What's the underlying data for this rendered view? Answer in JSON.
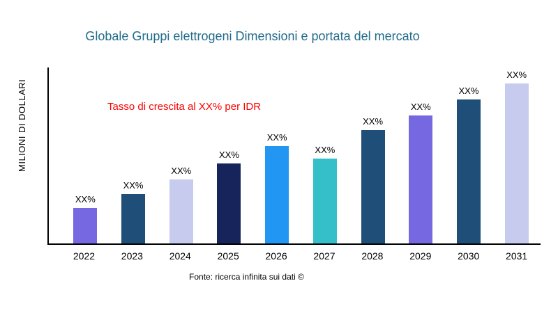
{
  "chart_data": {
    "type": "bar",
    "title": "Globale Gruppi elettrogeni Dimensioni e portata del mercato",
    "annotation": "Tasso di crescita al XX% per IDR",
    "source": "Fonte: ricerca infinita sui dati ©",
    "xlabel": "",
    "ylabel": "MILIONI DI DOLLARI",
    "categories": [
      "2022",
      "2023",
      "2024",
      "2025",
      "2026",
      "2027",
      "2028",
      "2029",
      "2030",
      "2031"
    ],
    "values": [
      22,
      31,
      40,
      50,
      61,
      53,
      71,
      80,
      90,
      100
    ],
    "bar_labels": [
      "XX%",
      "XX%",
      "XX%",
      "XX%",
      "XX%",
      "XX%",
      "XX%",
      "XX%",
      "XX%",
      "XX%"
    ],
    "bar_colors": [
      "#7668e0",
      "#1f4e79",
      "#c7ccef",
      "#17235b",
      "#2196f3",
      "#35bfc9",
      "#1f4e79",
      "#7668e0",
      "#1f4e79",
      "#c7ccef"
    ],
    "ylim": [
      0,
      110
    ],
    "grid": false,
    "legend": false,
    "colors": {
      "title": "#236c8c",
      "annotation": "#ff0000",
      "axis": "#000000",
      "background": "#ffffff"
    }
  }
}
